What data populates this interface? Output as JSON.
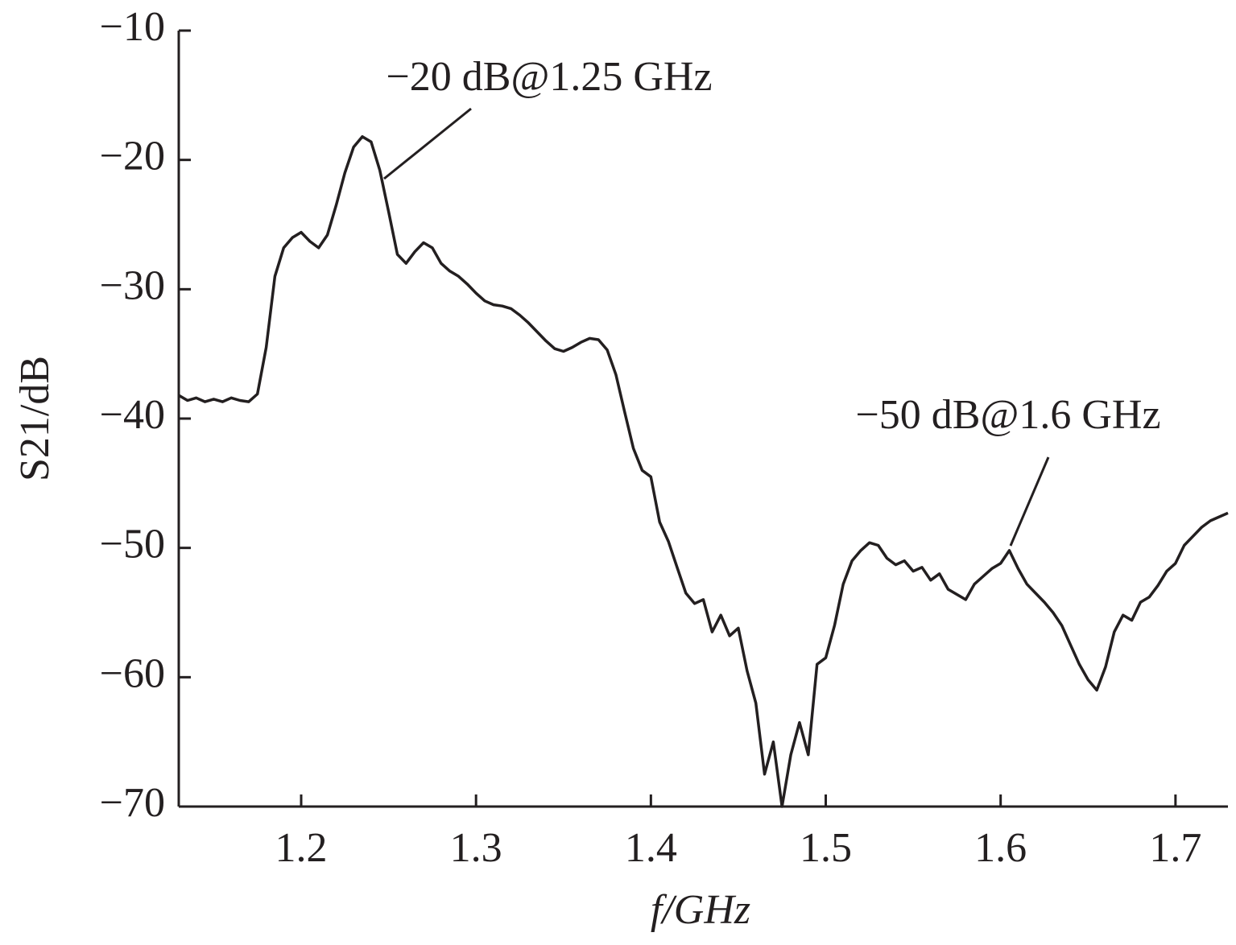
{
  "chart_data": {
    "type": "line",
    "xlabel": "f/GHz",
    "ylabel": "S21/dB",
    "xlim": [
      1.13,
      1.73
    ],
    "ylim": [
      -70,
      -10
    ],
    "xticks": [
      1.2,
      1.3,
      1.4,
      1.5,
      1.6,
      1.7
    ],
    "yticks": [
      {
        "value": -10,
        "label": "−10"
      },
      {
        "value": -20,
        "label": "−20"
      },
      {
        "value": -30,
        "label": "−30"
      },
      {
        "value": -40,
        "label": "−40"
      },
      {
        "value": -50,
        "label": "−50"
      },
      {
        "value": -60,
        "label": "−60"
      },
      {
        "value": -70,
        "label": "−70"
      }
    ],
    "grid": false,
    "annotations": [
      {
        "text": "−20 dB@1.25 GHz"
      },
      {
        "text": "−50 dB@1.6 GHz"
      }
    ],
    "x": [
      1.13,
      1.135,
      1.14,
      1.145,
      1.15,
      1.155,
      1.16,
      1.165,
      1.17,
      1.175,
      1.18,
      1.185,
      1.19,
      1.195,
      1.2,
      1.205,
      1.21,
      1.215,
      1.22,
      1.225,
      1.23,
      1.235,
      1.24,
      1.245,
      1.25,
      1.255,
      1.26,
      1.265,
      1.27,
      1.275,
      1.28,
      1.285,
      1.29,
      1.295,
      1.3,
      1.305,
      1.31,
      1.315,
      1.32,
      1.325,
      1.33,
      1.335,
      1.34,
      1.345,
      1.35,
      1.355,
      1.36,
      1.365,
      1.37,
      1.375,
      1.38,
      1.385,
      1.39,
      1.395,
      1.4,
      1.405,
      1.41,
      1.415,
      1.42,
      1.425,
      1.43,
      1.435,
      1.44,
      1.445,
      1.45,
      1.455,
      1.46,
      1.465,
      1.47,
      1.475,
      1.48,
      1.485,
      1.49,
      1.495,
      1.5,
      1.505,
      1.51,
      1.515,
      1.52,
      1.525,
      1.53,
      1.535,
      1.54,
      1.545,
      1.55,
      1.555,
      1.56,
      1.565,
      1.57,
      1.575,
      1.58,
      1.585,
      1.59,
      1.595,
      1.6,
      1.605,
      1.61,
      1.615,
      1.62,
      1.625,
      1.63,
      1.635,
      1.64,
      1.645,
      1.65,
      1.655,
      1.66,
      1.665,
      1.67,
      1.675,
      1.68,
      1.685,
      1.69,
      1.695,
      1.7,
      1.705,
      1.71,
      1.715,
      1.72,
      1.725,
      1.73
    ],
    "series": [
      {
        "color": "#231f20",
        "values": [
          -38.2,
          -38.6,
          -38.4,
          -38.7,
          -38.5,
          -38.7,
          -38.4,
          -38.6,
          -38.7,
          -38.1,
          -34.5,
          -29.0,
          -26.8,
          -26.0,
          -25.6,
          -26.3,
          -26.8,
          -25.8,
          -23.5,
          -21.0,
          -19.0,
          -18.2,
          -18.6,
          -20.8,
          -24.0,
          -27.3,
          -28.0,
          -27.1,
          -26.4,
          -26.8,
          -28.0,
          -28.6,
          -29.0,
          -29.6,
          -30.3,
          -30.9,
          -31.2,
          -31.3,
          -31.5,
          -32.0,
          -32.6,
          -33.3,
          -34.0,
          -34.6,
          -34.8,
          -34.5,
          -34.1,
          -33.8,
          -33.9,
          -34.7,
          -36.6,
          -39.5,
          -42.3,
          -44.0,
          -44.5,
          -48.0,
          -49.5,
          -51.5,
          -53.5,
          -54.3,
          -54.0,
          -56.5,
          -55.2,
          -56.8,
          -56.2,
          -59.5,
          -62.0,
          -67.5,
          -65.0,
          -70.0,
          -66.0,
          -63.5,
          -66.0,
          -59.0,
          -58.5,
          -56.0,
          -52.8,
          -51.0,
          -50.2,
          -49.6,
          -49.8,
          -50.8,
          -51.3,
          -51.0,
          -51.8,
          -51.5,
          -52.5,
          -52.0,
          -53.2,
          -53.6,
          -54.0,
          -52.8,
          -52.2,
          -51.6,
          -51.2,
          -50.2,
          -51.6,
          -52.8,
          -53.5,
          -54.2,
          -55.0,
          -56.0,
          -57.5,
          -59.0,
          -60.2,
          -61.0,
          -59.2,
          -56.5,
          -55.2,
          -55.6,
          -54.2,
          -53.8,
          -52.9,
          -51.8,
          -51.2,
          -49.8,
          -49.1,
          -48.4,
          -47.9,
          -47.6,
          -47.3
        ]
      }
    ]
  }
}
